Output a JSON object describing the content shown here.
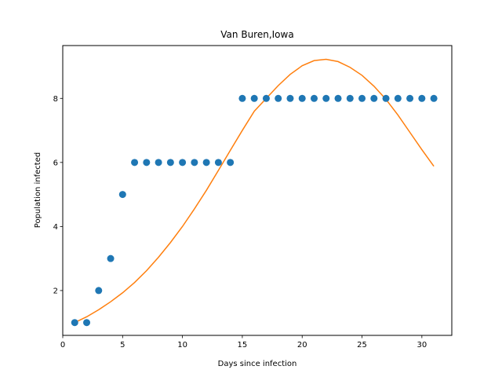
{
  "chart_data": {
    "type": "scatter",
    "title": "Van Buren,Iowa",
    "xlabel": "Days since infection",
    "ylabel": "Population infected",
    "xlim": [
      0,
      32.5
    ],
    "ylim": [
      0.6,
      9.65
    ],
    "xticks": [
      0,
      5,
      10,
      15,
      20,
      25,
      30
    ],
    "yticks": [
      2,
      4,
      6,
      8
    ],
    "grid": false,
    "series": [
      {
        "kind": "scatter",
        "color": "#1f77b4",
        "x": [
          1,
          2,
          3,
          4,
          5,
          6,
          7,
          8,
          9,
          10,
          11,
          12,
          13,
          14,
          15,
          16,
          17,
          18,
          19,
          20,
          21,
          22,
          23,
          24,
          25,
          26,
          27,
          28,
          29,
          30,
          31
        ],
        "y": [
          1,
          1,
          2,
          3,
          5,
          6,
          6,
          6,
          6,
          6,
          6,
          6,
          6,
          6,
          8,
          8,
          8,
          8,
          8,
          8,
          8,
          8,
          8,
          8,
          8,
          8,
          8,
          8,
          8,
          8,
          8
        ]
      },
      {
        "kind": "line",
        "color": "#ff7f0e",
        "x": [
          1,
          2,
          3,
          4,
          5,
          6,
          7,
          8,
          9,
          10,
          11,
          12,
          13,
          14,
          15,
          16,
          17,
          18,
          19,
          20,
          21,
          22,
          23,
          24,
          25,
          26,
          27,
          28,
          29,
          30,
          31
        ],
        "y": [
          1.0,
          1.18,
          1.4,
          1.65,
          1.93,
          2.25,
          2.62,
          3.04,
          3.5,
          4.0,
          4.55,
          5.13,
          5.75,
          6.38,
          7.0,
          7.6,
          8.0,
          8.4,
          8.75,
          9.02,
          9.18,
          9.22,
          9.15,
          8.97,
          8.72,
          8.38,
          7.97,
          7.48,
          6.94,
          6.4,
          5.88
        ]
      }
    ]
  }
}
